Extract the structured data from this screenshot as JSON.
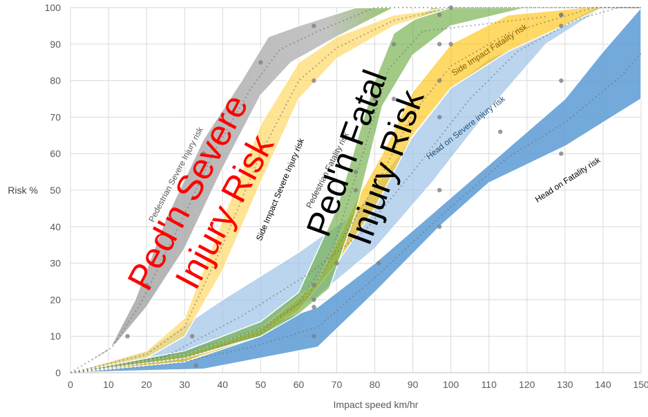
{
  "chart_data": {
    "type": "area",
    "xlabel": "Impact speed km/hr",
    "ylabel": "Risk %",
    "xlim": [
      0,
      150
    ],
    "ylim": [
      0,
      100
    ],
    "x_ticks": [
      "0",
      "10",
      "20",
      "30",
      "40",
      "50",
      "60",
      "70",
      "80",
      "90",
      "100",
      "110",
      "120",
      "130",
      "140",
      "150"
    ],
    "y_ticks": [
      "0",
      "10",
      "20",
      "30",
      "40",
      "50",
      "60",
      "70",
      "80",
      "90",
      "100"
    ],
    "grid": true,
    "series": [
      {
        "name": "Head on Fatality risk",
        "color": "#5b9bd5",
        "opacity": 0.85,
        "band_upper": [
          [
            0,
            0
          ],
          [
            20,
            4
          ],
          [
            40,
            9
          ],
          [
            65,
            18
          ],
          [
            80,
            30
          ],
          [
            100,
            48
          ],
          [
            120,
            66
          ],
          [
            130,
            75
          ],
          [
            140,
            88
          ],
          [
            150,
            100
          ]
        ],
        "band_lower": [
          [
            0,
            0
          ],
          [
            35,
            1
          ],
          [
            55,
            5
          ],
          [
            65,
            7
          ],
          [
            80,
            22
          ],
          [
            97,
            40
          ],
          [
            110,
            52
          ],
          [
            130,
            62
          ],
          [
            150,
            75
          ]
        ],
        "points": [
          [
            33,
            2
          ],
          [
            64,
            10
          ],
          [
            97,
            40
          ],
          [
            113,
            66
          ],
          [
            129,
            60
          ],
          [
            129,
            80
          ]
        ]
      },
      {
        "name": "Head on Severe injury risk",
        "color": "#9dc3e6",
        "opacity": 0.7,
        "band_upper": [
          [
            0,
            0
          ],
          [
            20,
            6
          ],
          [
            40,
            20
          ],
          [
            60,
            33
          ],
          [
            75,
            44
          ],
          [
            88,
            62
          ],
          [
            100,
            78
          ],
          [
            110,
            86
          ],
          [
            125,
            93
          ],
          [
            138,
            100
          ],
          [
            150,
            100
          ]
        ],
        "band_lower": [
          [
            0,
            0
          ],
          [
            30,
            3
          ],
          [
            50,
            11
          ],
          [
            65,
            21
          ],
          [
            80,
            34
          ],
          [
            95,
            52
          ],
          [
            110,
            72
          ],
          [
            125,
            90
          ],
          [
            140,
            100
          ],
          [
            150,
            100
          ]
        ],
        "points": [
          [
            64,
            18
          ],
          [
            81,
            30
          ],
          [
            97,
            50
          ],
          [
            97,
            70
          ],
          [
            129,
            95
          ]
        ]
      },
      {
        "name": "Side Impact Fatality risk",
        "color": "#ffc000",
        "opacity": 0.6,
        "band_upper": [
          [
            0,
            0
          ],
          [
            30,
            5
          ],
          [
            50,
            12
          ],
          [
            65,
            25
          ],
          [
            75,
            47
          ],
          [
            82,
            60
          ],
          [
            90,
            77
          ],
          [
            100,
            90
          ],
          [
            115,
            98
          ],
          [
            135,
            100
          ],
          [
            150,
            100
          ]
        ],
        "band_lower": [
          [
            0,
            0
          ],
          [
            30,
            3
          ],
          [
            50,
            10
          ],
          [
            60,
            17
          ],
          [
            70,
            30
          ],
          [
            80,
            45
          ],
          [
            90,
            65
          ],
          [
            100,
            78
          ],
          [
            115,
            88
          ],
          [
            140,
            100
          ],
          [
            150,
            100
          ]
        ],
        "points": [
          [
            64,
            20
          ],
          [
            75,
            55
          ],
          [
            85,
            75
          ],
          [
            97,
            80
          ],
          [
            100,
            90
          ],
          [
            129,
            98
          ]
        ]
      },
      {
        "name": "Pedestrian Fatality risk",
        "color": "#70ad47",
        "opacity": 0.65,
        "band_upper": [
          [
            0,
            0
          ],
          [
            30,
            6
          ],
          [
            50,
            14
          ],
          [
            60,
            22
          ],
          [
            70,
            45
          ],
          [
            80,
            80
          ],
          [
            85,
            93
          ],
          [
            95,
            100
          ],
          [
            150,
            100
          ]
        ],
        "band_lower": [
          [
            0,
            0
          ],
          [
            30,
            4
          ],
          [
            50,
            10
          ],
          [
            60,
            16
          ],
          [
            68,
            23
          ],
          [
            75,
            44
          ],
          [
            82,
            73
          ],
          [
            90,
            87
          ],
          [
            100,
            95
          ],
          [
            120,
            100
          ],
          [
            150,
            100
          ]
        ],
        "points": [
          [
            64,
            24
          ],
          [
            70,
            30
          ],
          [
            75,
            50
          ],
          [
            80,
            75
          ],
          [
            85,
            90
          ],
          [
            97,
            98
          ],
          [
            100,
            100
          ]
        ]
      },
      {
        "name": "Side Impact Severe injury risk",
        "color": "#ffd966",
        "opacity": 0.7,
        "band_upper": [
          [
            0,
            0
          ],
          [
            20,
            6
          ],
          [
            30,
            15
          ],
          [
            40,
            42
          ],
          [
            50,
            68
          ],
          [
            60,
            85
          ],
          [
            70,
            92
          ],
          [
            85,
            98
          ],
          [
            100,
            100
          ],
          [
            150,
            100
          ]
        ],
        "band_lower": [
          [
            0,
            0
          ],
          [
            20,
            4
          ],
          [
            30,
            10
          ],
          [
            40,
            28
          ],
          [
            50,
            52
          ],
          [
            60,
            75
          ],
          [
            70,
            86
          ],
          [
            85,
            95
          ],
          [
            100,
            100
          ],
          [
            150,
            100
          ]
        ],
        "points": [
          [
            32,
            10
          ],
          [
            64,
            80
          ],
          [
            97,
            90
          ],
          [
            129,
            98
          ]
        ]
      },
      {
        "name": "Pedestrian Severe Injury risk",
        "color": "#8bc34a",
        "opacity": 0.9,
        "band_upper": [
          [
            0,
            0
          ],
          [
            10,
            6
          ],
          [
            17,
            20
          ],
          [
            25,
            42
          ],
          [
            35,
            64
          ],
          [
            45,
            80
          ],
          [
            52,
            92
          ],
          [
            60,
            95
          ],
          [
            75,
            100
          ],
          [
            150,
            100
          ]
        ],
        "band_lower": [
          [
            0,
            0
          ],
          [
            12,
            8
          ],
          [
            20,
            18
          ],
          [
            30,
            34
          ],
          [
            40,
            56
          ],
          [
            50,
            76
          ],
          [
            58,
            85
          ],
          [
            70,
            92
          ],
          [
            85,
            100
          ],
          [
            150,
            100
          ]
        ],
        "points": [
          [
            15,
            10
          ],
          [
            20,
            24
          ],
          [
            35,
            60
          ],
          [
            50,
            85
          ],
          [
            64,
            95
          ]
        ]
      }
    ],
    "annotations": [
      {
        "text": "Ped'n Severe\nInjury Risk",
        "color": "#ff0000"
      },
      {
        "text": "Ped'n Fatal\nInjury Risk",
        "color": "#000000"
      },
      {
        "text": "Pedestrian Severe Injury risk"
      },
      {
        "text": "Side Impact Severe Injury risk"
      },
      {
        "text": "Pedestrian Fatality risk"
      },
      {
        "text": "Side Impact Fatality risk"
      },
      {
        "text": "Head on Severe injury risk"
      },
      {
        "text": "Head on Fatality risk"
      }
    ]
  },
  "labels": {
    "big_red_line1": "Ped'n Severe",
    "big_red_line2": "Injury Risk",
    "big_black_line1": "Ped'n Fatal",
    "big_black_line2": "Injury Risk",
    "ped_severe": "Pedestrian Severe Injury risk",
    "side_severe": "Side Impact Severe Injury risk",
    "ped_fatal": "Pedestrian Fatality risk",
    "side_fatal": "Side Impact Fatality risk",
    "head_severe": "Head on Severe injury risk",
    "head_fatal": "Head on Fatality risk"
  }
}
